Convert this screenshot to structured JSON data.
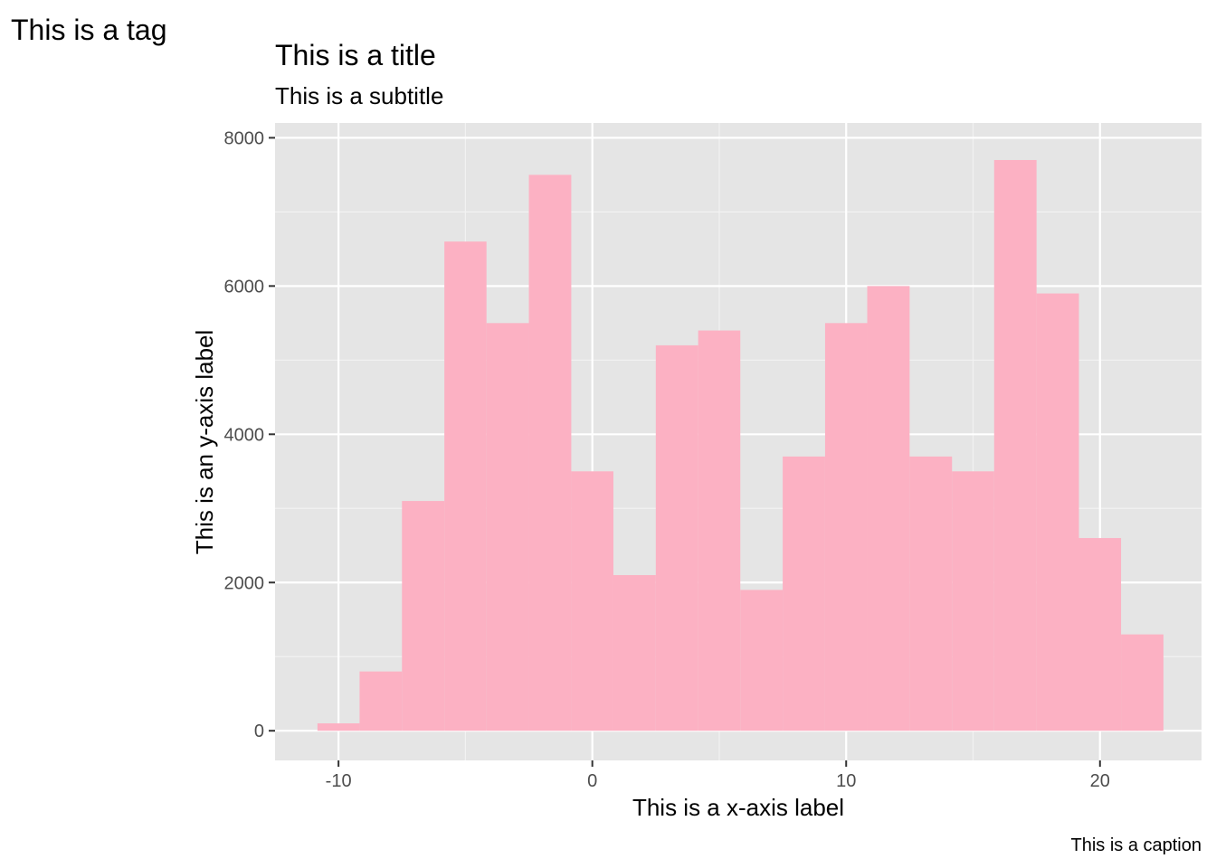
{
  "chart_data": {
    "type": "histogram",
    "tag": "This is a tag",
    "title": "This is a title",
    "subtitle": "This is a subtitle",
    "xlabel": "This is a x-axis label",
    "ylabel": "This is an y-axis label",
    "caption": "This is a caption",
    "xlim": [
      -12.5,
      24
    ],
    "ylim": [
      -400,
      8200
    ],
    "x_ticks": [
      -10,
      0,
      10,
      20
    ],
    "y_ticks": [
      0,
      2000,
      4000,
      6000,
      8000
    ],
    "x_tick_labels": [
      "-10",
      "0",
      "10",
      "20"
    ],
    "y_tick_labels": [
      "0",
      "2000",
      "4000",
      "6000",
      "8000"
    ],
    "grid": true,
    "bin_width": 1.667,
    "bins": [
      {
        "x0": -10.83,
        "x1": -9.17,
        "count": 100
      },
      {
        "x0": -9.17,
        "x1": -7.5,
        "count": 800
      },
      {
        "x0": -7.5,
        "x1": -5.83,
        "count": 3100
      },
      {
        "x0": -5.83,
        "x1": -4.17,
        "count": 6600
      },
      {
        "x0": -4.17,
        "x1": -2.5,
        "count": 5500
      },
      {
        "x0": -2.5,
        "x1": -0.83,
        "count": 7500
      },
      {
        "x0": -0.83,
        "x1": 0.83,
        "count": 3500
      },
      {
        "x0": 0.83,
        "x1": 2.5,
        "count": 2100
      },
      {
        "x0": 2.5,
        "x1": 4.17,
        "count": 5200
      },
      {
        "x0": 4.17,
        "x1": 5.83,
        "count": 5400
      },
      {
        "x0": 5.83,
        "x1": 7.5,
        "count": 1900
      },
      {
        "x0": 7.5,
        "x1": 9.17,
        "count": 3700
      },
      {
        "x0": 9.17,
        "x1": 10.83,
        "count": 5500
      },
      {
        "x0": 10.83,
        "x1": 12.5,
        "count": 6000
      },
      {
        "x0": 12.5,
        "x1": 14.17,
        "count": 3700
      },
      {
        "x0": 14.17,
        "x1": 15.83,
        "count": 3500
      },
      {
        "x0": 15.83,
        "x1": 17.5,
        "count": 7700
      },
      {
        "x0": 17.5,
        "x1": 19.17,
        "count": 5900
      },
      {
        "x0": 19.17,
        "x1": 20.83,
        "count": 2600
      },
      {
        "x0": 20.83,
        "x1": 22.5,
        "count": 1300
      }
    ],
    "colors": {
      "bar_fill": "#FCB1C3",
      "panel_background": "#E5E5E5",
      "grid_major": "#FFFFFF",
      "grid_minor": "#F2F2F2",
      "tick_text": "#4D4D4D"
    }
  }
}
